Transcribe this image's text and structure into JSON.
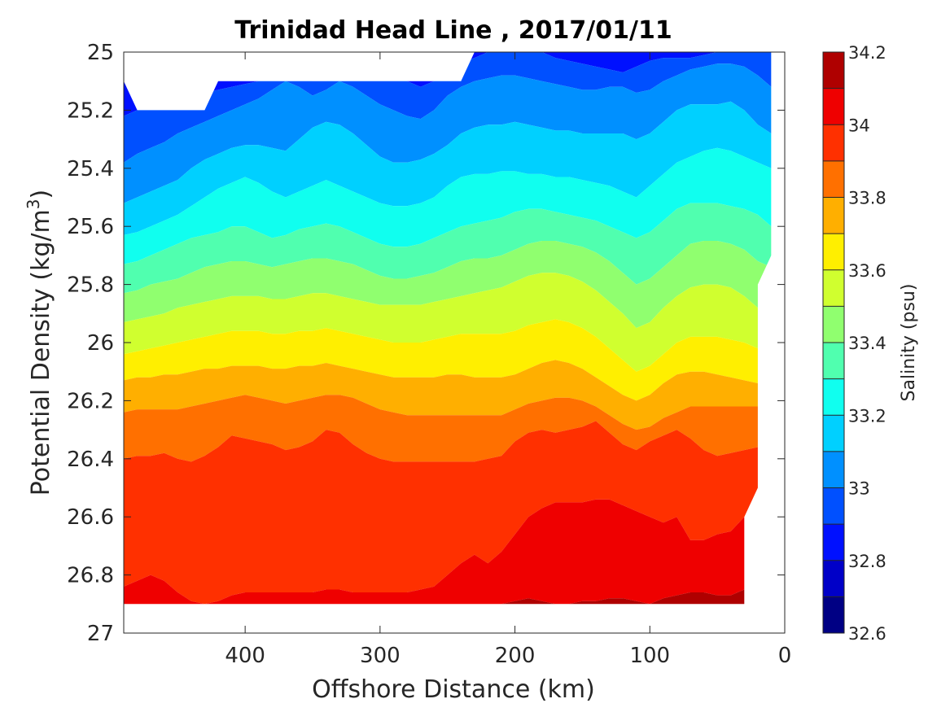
{
  "chart_data": {
    "type": "heatmap",
    "subtype": "filled-contour",
    "title": "Trinidad Head Line , 2017/01/11",
    "xlabel": "Offshore Distance (km)",
    "ylabel": "Potential Density (kg/m3)",
    "ylabel_base": "Potential Density (kg/m",
    "ylabel_sup": "3",
    "ylabel_close": ")",
    "xlim": [
      490,
      0
    ],
    "x_reversed": true,
    "ylim": [
      25,
      27
    ],
    "y_reversed": true,
    "xticks": [
      400,
      300,
      200,
      100,
      0
    ],
    "yticks": [
      25,
      25.2,
      25.4,
      25.6,
      25.8,
      26,
      26.2,
      26.4,
      26.6,
      26.8,
      27
    ],
    "colorbar": {
      "label": "Salinity (psu)",
      "levels": [
        32.6,
        32.7,
        32.8,
        32.9,
        33.0,
        33.1,
        33.2,
        33.3,
        33.4,
        33.5,
        33.6,
        33.7,
        33.8,
        33.9,
        34.0,
        34.1,
        34.2
      ],
      "ticks": [
        32.6,
        32.8,
        33,
        33.2,
        33.4,
        33.6,
        33.8,
        34,
        34.2
      ],
      "colors": [
        "#000084",
        "#0000c8",
        "#0010ff",
        "#0050ff",
        "#0090ff",
        "#00d0ff",
        "#10ffef",
        "#50ffaf",
        "#90ff6f",
        "#d0ff2f",
        "#ffef00",
        "#ffaf00",
        "#ff7000",
        "#ff3000",
        "#ef0000",
        "#af0000"
      ],
      "colormap": "jet"
    },
    "contour_x": [
      490,
      480,
      470,
      460,
      450,
      440,
      430,
      420,
      410,
      400,
      390,
      380,
      370,
      360,
      350,
      340,
      330,
      320,
      310,
      300,
      290,
      280,
      270,
      260,
      250,
      240,
      230,
      220,
      210,
      200,
      190,
      180,
      170,
      160,
      150,
      140,
      130,
      120,
      110,
      100,
      90,
      80,
      70,
      60,
      50,
      40,
      30,
      20,
      10
    ],
    "contour_lines": [
      {
        "level": 32.9,
        "density": [
          25.22,
          25.2,
          25.19,
          25.18,
          25.17,
          25.16,
          25.14,
          25.13,
          25.12,
          25.11,
          25.1,
          25.08,
          25.06,
          25.08,
          25.1,
          25.1,
          25.09,
          25.07,
          25.05,
          25.04,
          25.06,
          25.1,
          25.12,
          25.1,
          25.07,
          25.04,
          25.02,
          25.0,
          25.0,
          25.0,
          25.0,
          25.0,
          25.02,
          25.03,
          25.04,
          25.05,
          25.06,
          25.07,
          25.05,
          25.03,
          25.02,
          25.02,
          25.02,
          25.01,
          25.0,
          25.0,
          25.0,
          25.0,
          25.0
        ]
      },
      {
        "level": 33.0,
        "density": [
          25.38,
          25.35,
          25.33,
          25.31,
          25.28,
          25.26,
          25.24,
          25.22,
          25.2,
          25.18,
          25.16,
          25.13,
          25.1,
          25.12,
          25.15,
          25.13,
          25.1,
          25.12,
          25.15,
          25.18,
          25.2,
          25.22,
          25.23,
          25.2,
          25.15,
          25.12,
          25.1,
          25.09,
          25.08,
          25.08,
          25.09,
          25.1,
          25.11,
          25.12,
          25.13,
          25.13,
          25.12,
          25.12,
          25.14,
          25.13,
          25.1,
          25.08,
          25.06,
          25.05,
          25.04,
          25.04,
          25.05,
          25.08,
          25.12
        ]
      },
      {
        "level": 33.1,
        "density": [
          25.52,
          25.5,
          25.48,
          25.46,
          25.44,
          25.4,
          25.37,
          25.35,
          25.33,
          25.32,
          25.32,
          25.33,
          25.34,
          25.3,
          25.26,
          25.24,
          25.25,
          25.28,
          25.32,
          25.36,
          25.38,
          25.38,
          25.37,
          25.35,
          25.32,
          25.28,
          25.26,
          25.25,
          25.25,
          25.24,
          25.25,
          25.26,
          25.27,
          25.27,
          25.28,
          25.28,
          25.28,
          25.28,
          25.3,
          25.28,
          25.24,
          25.2,
          25.18,
          25.18,
          25.18,
          25.17,
          25.2,
          25.25,
          25.28
        ]
      },
      {
        "level": 33.2,
        "density": [
          25.63,
          25.62,
          25.6,
          25.58,
          25.56,
          25.53,
          25.5,
          25.47,
          25.45,
          25.43,
          25.45,
          25.48,
          25.5,
          25.48,
          25.46,
          25.44,
          25.46,
          25.48,
          25.5,
          25.52,
          25.53,
          25.53,
          25.52,
          25.5,
          25.46,
          25.43,
          25.42,
          25.42,
          25.41,
          25.41,
          25.42,
          25.42,
          25.43,
          25.43,
          25.44,
          25.45,
          25.46,
          25.48,
          25.5,
          25.46,
          25.42,
          25.38,
          25.36,
          25.34,
          25.33,
          25.34,
          25.36,
          25.38,
          25.4
        ]
      },
      {
        "level": 33.3,
        "density": [
          25.73,
          25.72,
          25.7,
          25.68,
          25.66,
          25.64,
          25.63,
          25.62,
          25.6,
          25.6,
          25.62,
          25.64,
          25.63,
          25.61,
          25.6,
          25.59,
          25.6,
          25.62,
          25.64,
          25.66,
          25.67,
          25.67,
          25.66,
          25.64,
          25.62,
          25.6,
          25.59,
          25.58,
          25.57,
          25.55,
          25.54,
          25.54,
          25.55,
          25.56,
          25.57,
          25.58,
          25.6,
          25.62,
          25.64,
          25.62,
          25.58,
          25.54,
          25.52,
          25.52,
          25.52,
          25.53,
          25.54,
          25.56,
          25.6
        ]
      },
      {
        "level": 33.4,
        "density": [
          25.83,
          25.82,
          25.8,
          25.79,
          25.78,
          25.76,
          25.74,
          25.73,
          25.72,
          25.72,
          25.73,
          25.74,
          25.73,
          25.72,
          25.71,
          25.71,
          25.72,
          25.73,
          25.75,
          25.77,
          25.78,
          25.78,
          25.77,
          25.76,
          25.74,
          25.72,
          25.71,
          25.71,
          25.7,
          25.68,
          25.66,
          25.65,
          25.65,
          25.66,
          25.67,
          25.69,
          25.72,
          25.76,
          25.8,
          25.78,
          25.74,
          25.7,
          25.66,
          25.65,
          25.65,
          25.66,
          25.68,
          25.72,
          25.74
        ]
      },
      {
        "level": 33.5,
        "density": [
          25.93,
          25.92,
          25.91,
          25.9,
          25.88,
          25.87,
          25.86,
          25.85,
          25.84,
          25.84,
          25.84,
          25.85,
          25.85,
          25.84,
          25.83,
          25.83,
          25.84,
          25.85,
          25.86,
          25.87,
          25.87,
          25.87,
          25.87,
          25.86,
          25.85,
          25.84,
          25.83,
          25.82,
          25.81,
          25.79,
          25.77,
          25.76,
          25.76,
          25.77,
          25.79,
          25.82,
          25.86,
          25.9,
          25.95,
          25.93,
          25.88,
          25.84,
          25.81,
          25.8,
          25.8,
          25.81,
          25.84,
          25.88,
          25.9
        ]
      },
      {
        "level": 33.6,
        "density": [
          26.04,
          26.03,
          26.02,
          26.01,
          26.0,
          25.99,
          25.98,
          25.97,
          25.96,
          25.96,
          25.96,
          25.97,
          25.97,
          25.96,
          25.96,
          25.95,
          25.96,
          25.97,
          25.98,
          25.99,
          26.0,
          26.0,
          26.0,
          25.99,
          25.98,
          25.97,
          25.97,
          25.97,
          25.97,
          25.96,
          25.94,
          25.93,
          25.92,
          25.93,
          25.95,
          25.98,
          26.02,
          26.06,
          26.1,
          26.08,
          26.04,
          26.0,
          25.98,
          25.98,
          25.98,
          25.99,
          26.0,
          26.02,
          26.04
        ]
      },
      {
        "level": 33.7,
        "density": [
          26.13,
          26.12,
          26.12,
          26.11,
          26.11,
          26.1,
          26.09,
          26.09,
          26.08,
          26.08,
          26.08,
          26.09,
          26.09,
          26.08,
          26.08,
          26.07,
          26.08,
          26.09,
          26.1,
          26.11,
          26.12,
          26.12,
          26.12,
          26.12,
          26.11,
          26.11,
          26.12,
          26.12,
          26.12,
          26.11,
          26.09,
          26.07,
          26.06,
          26.07,
          26.09,
          26.12,
          26.15,
          26.18,
          26.2,
          26.18,
          26.14,
          26.11,
          26.1,
          26.1,
          26.11,
          26.12,
          26.13,
          26.14,
          26.15
        ]
      },
      {
        "level": 33.8,
        "density": [
          26.24,
          26.23,
          26.23,
          26.23,
          26.23,
          26.22,
          26.21,
          26.2,
          26.19,
          26.18,
          26.19,
          26.2,
          26.21,
          26.2,
          26.19,
          26.18,
          26.18,
          26.19,
          26.21,
          26.23,
          26.24,
          26.25,
          26.25,
          26.25,
          26.25,
          26.25,
          26.25,
          26.25,
          26.25,
          26.23,
          26.21,
          26.2,
          26.19,
          26.19,
          26.2,
          26.22,
          26.25,
          26.28,
          26.3,
          26.29,
          26.26,
          26.24,
          26.22,
          26.22,
          26.22,
          26.22,
          26.22,
          26.22,
          26.22
        ]
      },
      {
        "level": 33.9,
        "density": [
          26.4,
          26.39,
          26.39,
          26.38,
          26.4,
          26.41,
          26.39,
          26.36,
          26.32,
          26.33,
          26.34,
          26.35,
          26.37,
          26.36,
          26.34,
          26.3,
          26.31,
          26.35,
          26.38,
          26.4,
          26.41,
          26.41,
          26.41,
          26.41,
          26.41,
          26.41,
          26.41,
          26.4,
          26.39,
          26.34,
          26.31,
          26.3,
          26.31,
          26.3,
          26.29,
          26.27,
          26.31,
          26.35,
          26.37,
          26.34,
          26.32,
          26.3,
          26.33,
          26.37,
          26.39,
          26.38,
          26.37,
          26.36,
          26.36
        ]
      },
      {
        "level": 34.0,
        "density": [
          26.84,
          26.82,
          26.8,
          26.82,
          26.86,
          26.89,
          26.9,
          26.89,
          26.87,
          26.86,
          26.86,
          26.86,
          26.86,
          26.86,
          26.86,
          26.85,
          26.85,
          26.86,
          26.86,
          26.86,
          26.86,
          26.86,
          26.85,
          26.84,
          26.8,
          26.76,
          26.73,
          26.76,
          26.72,
          26.66,
          26.6,
          26.57,
          26.55,
          26.55,
          26.55,
          26.54,
          26.54,
          26.56,
          26.58,
          26.6,
          26.62,
          26.6,
          26.68,
          26.68,
          26.66,
          26.65,
          26.6,
          26.54,
          26.5
        ]
      },
      {
        "level": 34.1,
        "density": [
          26.92,
          26.92,
          26.92,
          26.92,
          26.92,
          26.92,
          26.92,
          26.92,
          26.92,
          26.92,
          26.92,
          26.92,
          26.92,
          26.92,
          26.92,
          26.92,
          26.92,
          26.92,
          26.92,
          26.92,
          26.92,
          26.92,
          26.92,
          26.92,
          26.92,
          26.92,
          26.92,
          26.92,
          26.9,
          26.89,
          26.88,
          26.89,
          26.9,
          26.9,
          26.89,
          26.89,
          26.88,
          26.88,
          26.89,
          26.9,
          26.88,
          26.87,
          26.86,
          26.86,
          26.87,
          26.87,
          26.85,
          26.92,
          26.92
        ]
      }
    ],
    "data_coverage": {
      "top_boundary": [
        [
          490,
          25.1
        ],
        [
          480,
          25.2
        ],
        [
          430,
          25.2
        ],
        [
          420,
          25.1
        ],
        [
          240,
          25.1
        ],
        [
          230,
          25.0
        ],
        [
          0,
          25.0
        ]
      ],
      "bottom_boundary": [
        [
          490,
          26.9
        ],
        [
          30,
          26.9
        ],
        [
          30,
          26.6
        ],
        [
          20,
          26.5
        ],
        [
          20,
          25.8
        ],
        [
          10,
          25.7
        ],
        [
          10,
          25.0
        ]
      ]
    }
  }
}
